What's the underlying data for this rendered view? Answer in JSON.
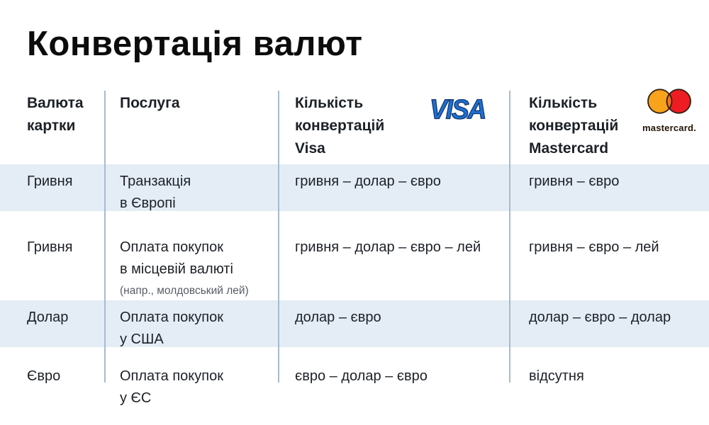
{
  "title": "Конвертація валют",
  "table": {
    "columns": [
      {
        "label": "Валюта картки",
        "lines": [
          "Валюта",
          "картки"
        ]
      },
      {
        "label": "Послуга",
        "lines": [
          "Послуга"
        ]
      },
      {
        "label": "Кількість конвертацій Visa",
        "lines": [
          "Кількість",
          "конвертацій",
          "Visa"
        ],
        "logo": "visa"
      },
      {
        "label": "Кількість конвертацій Mastercard",
        "lines": [
          "Кількість",
          "конвертацій",
          "Mastercard"
        ],
        "logo": "mastercard"
      }
    ],
    "rows": [
      {
        "currency": "Гривня",
        "service_lines": [
          "Транзакція",
          "в Європі"
        ],
        "service_note": "",
        "visa": "гривня – долар – євро",
        "mastercard": "гривня – євро",
        "highlighted": true
      },
      {
        "currency": "Гривня",
        "service_lines": [
          "Оплата покупок",
          "в місцевій валюті"
        ],
        "service_note": "(напр., молдовський лей)",
        "visa": "гривня – долар – євро – лей",
        "mastercard": "гривня – євро – лей",
        "highlighted": false
      },
      {
        "currency": "Долар",
        "service_lines": [
          "Оплата покупок",
          "у США"
        ],
        "service_note": "",
        "visa": "долар – євро",
        "mastercard": "долар – євро – долар",
        "highlighted": true
      },
      {
        "currency": "Євро",
        "service_lines": [
          "Оплата покупок",
          "у ЄС"
        ],
        "service_note": "",
        "visa": "євро – долар – євро",
        "mastercard": "відсутня",
        "highlighted": false
      }
    ]
  },
  "logos": {
    "visa": {
      "text": "VISA",
      "color": "#1e70d2",
      "outline": "#14366e"
    },
    "mastercard": {
      "text": "mastercard.",
      "left_circle": "#F9A21B",
      "right_circle": "#EE1D23",
      "overlap": "#F0761D",
      "outline": "#301f12"
    }
  },
  "colors": {
    "highlight_row_bg": "#e4ecf5",
    "divider": "#a6bccf",
    "text": "#1c2127",
    "note_text": "#565d65",
    "title": "#0c0c0c"
  },
  "chart_data": {
    "type": "table",
    "title": "Конвертація валют",
    "columns": [
      "Валюта картки",
      "Послуга",
      "Кількість конвертацій Visa",
      "Кількість конвертацій Mastercard"
    ],
    "rows": [
      [
        "Гривня",
        "Транзакція в Європі",
        "гривня – долар – євро",
        "гривня – євро"
      ],
      [
        "Гривня",
        "Оплата покупок в місцевій валюті (напр., молдовський лей)",
        "гривня – долар – євро – лей",
        "гривня – євро – лей"
      ],
      [
        "Долар",
        "Оплата покупок у США",
        "долар – євро",
        "долар – євро – долар"
      ],
      [
        "Євро",
        "Оплата покупок у ЄС",
        "євро – долар – євро",
        "відсутня"
      ]
    ]
  }
}
